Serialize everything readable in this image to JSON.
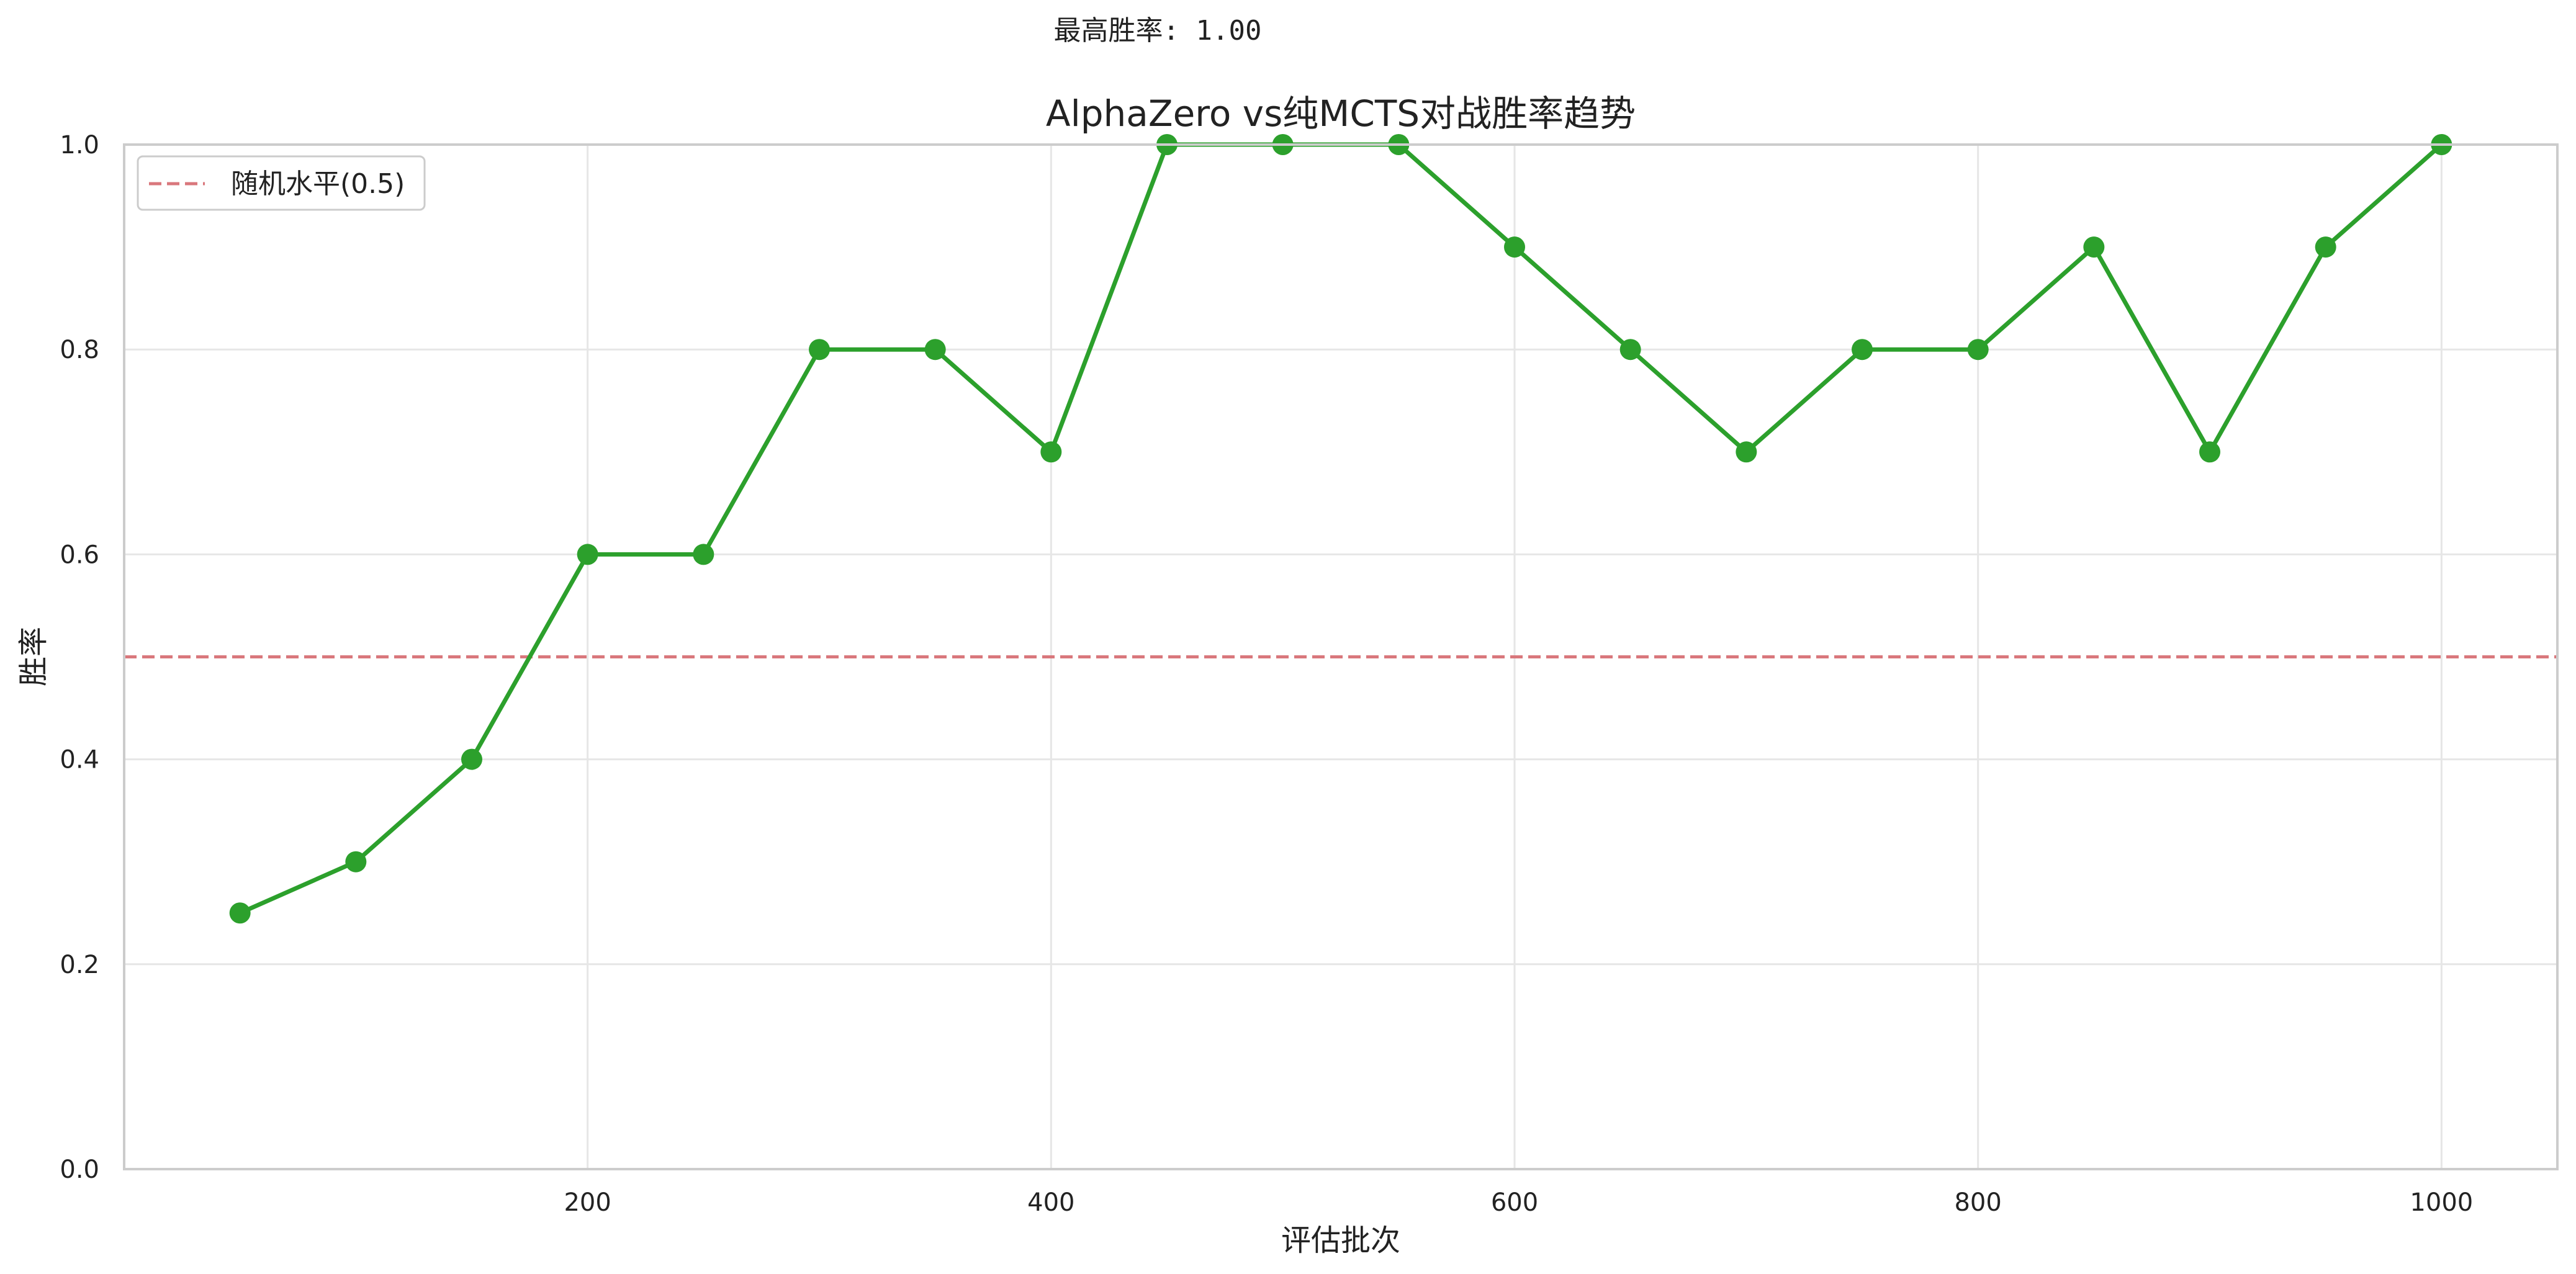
{
  "annotation_text": "最高胜率: 1.00",
  "chart_data": {
    "type": "line",
    "title": "AlphaZero vs纯MCTS对战胜率趋势",
    "xlabel": "评估批次",
    "ylabel": "胜率",
    "xlim": [
      0,
      1050
    ],
    "ylim": [
      0.0,
      1.0
    ],
    "xticks": [
      200,
      400,
      600,
      800,
      1000
    ],
    "yticks": [
      0.0,
      0.2,
      0.4,
      0.6,
      0.8,
      1.0
    ],
    "xtick_labels": [
      "200",
      "400",
      "600",
      "800",
      "1000"
    ],
    "ytick_labels": [
      "0.0",
      "0.2",
      "0.4",
      "0.6",
      "0.8",
      "1.0"
    ],
    "grid": true,
    "series": [
      {
        "color": "#2ca02c",
        "x": [
          50,
          100,
          150,
          200,
          250,
          300,
          350,
          400,
          450,
          500,
          550,
          600,
          650,
          700,
          750,
          800,
          850,
          900,
          950,
          1000
        ],
        "y": [
          0.25,
          0.3,
          0.4,
          0.6,
          0.6,
          0.8,
          0.8,
          0.7,
          1.0,
          1.0,
          1.0,
          0.9,
          0.8,
          0.7,
          0.8,
          0.8,
          0.9,
          0.7,
          0.9,
          1.0
        ]
      }
    ],
    "reference_line": {
      "y": 0.5,
      "label": "随机水平(0.5)",
      "color": "#d9777c",
      "style": "dashed"
    },
    "legend": {
      "placement": "top-left"
    }
  }
}
